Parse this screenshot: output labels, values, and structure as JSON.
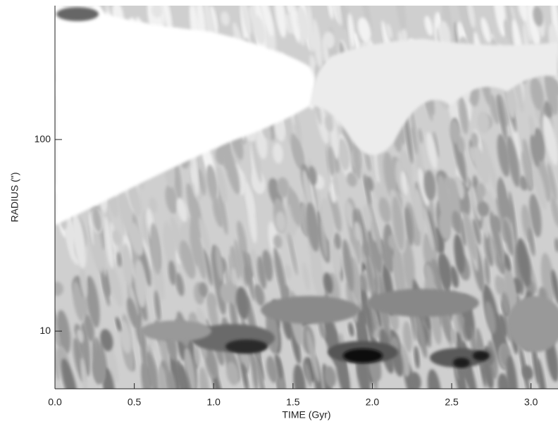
{
  "chart_data": {
    "type": "contour",
    "x_label": "TIME (Gyr)",
    "y_label": "RADIUS (\")",
    "xlim": [
      0,
      3.17
    ],
    "xticks": [
      {
        "value": 0,
        "label": "0.0"
      },
      0.5,
      {
        "value": 1,
        "label": "1.0"
      },
      1.5,
      {
        "value": 2,
        "label": "2.0"
      },
      2.5,
      {
        "value": 3,
        "label": "3.0"
      }
    ],
    "ylim": [
      5,
      500
    ],
    "yticks": [
      10,
      100
    ],
    "y_log": true
  }
}
